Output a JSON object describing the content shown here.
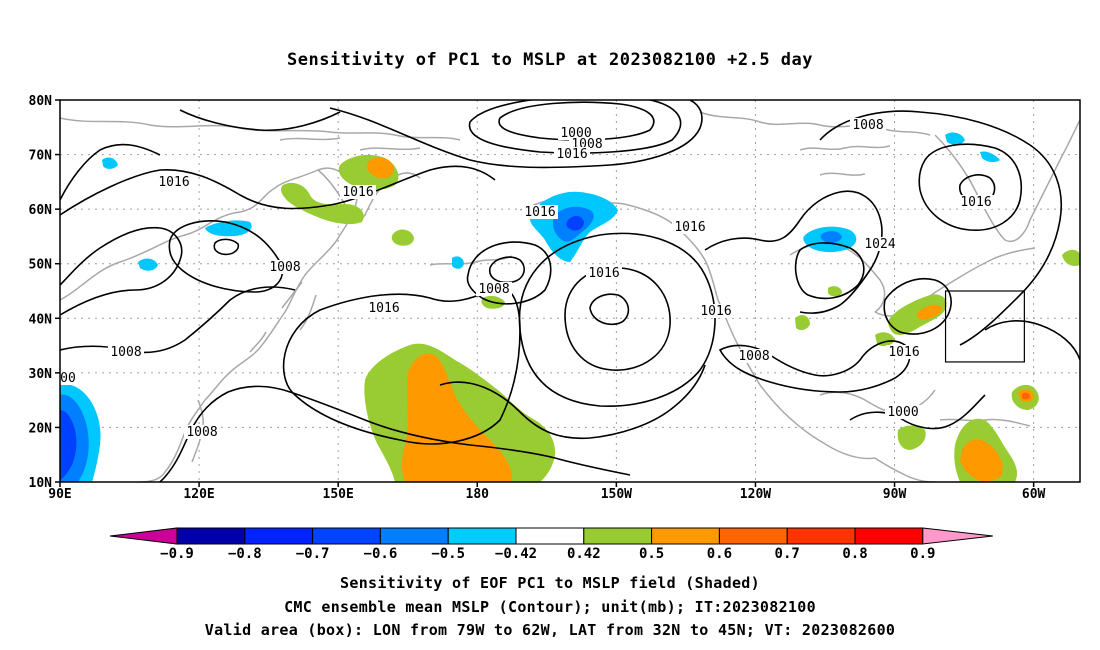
{
  "title": "Sensitivity of PC1 to MSLP at 2023082100 +2.5 day",
  "map": {
    "lat_labels": [
      "80N",
      "70N",
      "60N",
      "50N",
      "40N",
      "30N",
      "20N",
      "10N"
    ],
    "lon_labels": [
      "90E",
      "120E",
      "150E",
      "180",
      "150W",
      "120W",
      "90W",
      "60W"
    ],
    "valid_box": {
      "lon": [
        -79,
        -62
      ],
      "lat": [
        32,
        45
      ]
    },
    "contour_labels": [
      "1000",
      "1008",
      "1016",
      "1016",
      "1016",
      "1016",
      "1016",
      "1024",
      "1016",
      "1016",
      "1016",
      "1016",
      "1008",
      "1008",
      "1008",
      "1008",
      "1000",
      "1008",
      "1016",
      "1008",
      "00"
    ],
    "colors": {
      "land": "#a8a8a8",
      "contour": "#000000",
      "grid": "#a0a0a0",
      "pos_0_5": "#99cc33",
      "pos_0_6": "#ff9900",
      "pos_0_7": "#ff6600",
      "neg_0_5": "#00c8ff",
      "neg_0_6": "#0080ff",
      "neg_0_7": "#0040ff"
    }
  },
  "colorbar": {
    "colors": [
      "#cc0099",
      "#0000aa",
      "#0022ff",
      "#0044ff",
      "#0080ff",
      "#00ccff",
      "#ffffff",
      "#99cc33",
      "#ff9900",
      "#ff6600",
      "#ff3300",
      "#ff0000",
      "#ff99cc"
    ],
    "labels": [
      "−0.9",
      "−0.8",
      "−0.7",
      "−0.6",
      "−0.5",
      "−0.42",
      "0.42",
      "0.5",
      "0.6",
      "0.7",
      "0.8",
      "0.9"
    ]
  },
  "captions": {
    "line1": "Sensitivity of EOF PC1 to MSLP field (Shaded)",
    "line2": "CMC ensemble mean MSLP (Contour); unit(mb); IT:2023082100",
    "line3": "Valid area (box): LON from 79W to 62W, LAT from 32N to 45N; VT: 2023082600"
  }
}
